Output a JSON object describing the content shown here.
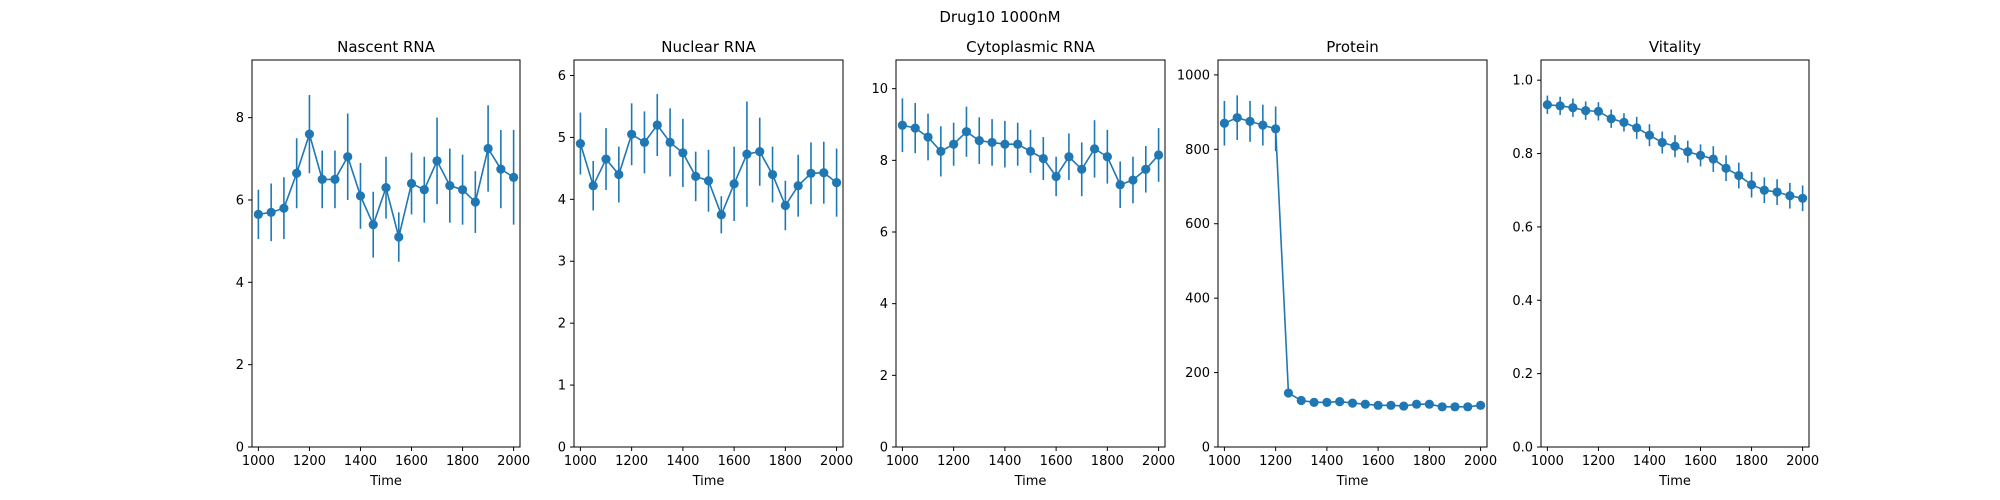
{
  "figure_title": "Drug10 1000nM",
  "colors": {
    "series": "#1f77b4",
    "axes": "#000000"
  },
  "chart_data": [
    {
      "type": "line",
      "title": "Nascent RNA",
      "xlabel": "Time",
      "ylabel": "",
      "xlim": [
        975,
        2025
      ],
      "ylim": [
        0,
        9.4
      ],
      "xticks": [
        1000,
        1200,
        1400,
        1600,
        1800,
        2000
      ],
      "yticks": [
        0,
        2,
        4,
        6,
        8
      ],
      "grid": false,
      "x": [
        1000,
        1050,
        1100,
        1150,
        1200,
        1250,
        1300,
        1350,
        1400,
        1450,
        1500,
        1550,
        1600,
        1650,
        1700,
        1750,
        1800,
        1850,
        1900,
        1950,
        2000
      ],
      "series": [
        {
          "values": [
            5.65,
            5.7,
            5.8,
            6.65,
            7.6,
            6.5,
            6.5,
            7.05,
            6.1,
            5.4,
            6.3,
            5.1,
            6.4,
            6.25,
            6.95,
            6.35,
            6.25,
            5.95,
            7.25,
            6.75,
            6.55
          ],
          "err": [
            0.6,
            0.7,
            0.75,
            0.85,
            0.95,
            0.7,
            0.7,
            1.05,
            0.8,
            0.8,
            0.75,
            0.6,
            0.75,
            0.8,
            1.05,
            0.9,
            0.85,
            0.75,
            1.05,
            0.95,
            1.15
          ]
        }
      ]
    },
    {
      "type": "line",
      "title": "Nuclear RNA",
      "xlabel": "Time",
      "ylabel": "",
      "xlim": [
        975,
        2025
      ],
      "ylim": [
        0,
        6.25
      ],
      "xticks": [
        1000,
        1200,
        1400,
        1600,
        1800,
        2000
      ],
      "yticks": [
        0,
        1,
        2,
        3,
        4,
        5,
        6
      ],
      "grid": false,
      "x": [
        1000,
        1050,
        1100,
        1150,
        1200,
        1250,
        1300,
        1350,
        1400,
        1450,
        1500,
        1550,
        1600,
        1650,
        1700,
        1750,
        1800,
        1850,
        1900,
        1950,
        2000
      ],
      "series": [
        {
          "values": [
            4.9,
            4.22,
            4.65,
            4.4,
            5.05,
            4.92,
            5.2,
            4.92,
            4.75,
            4.37,
            4.3,
            3.75,
            4.25,
            4.73,
            4.77,
            4.4,
            3.9,
            4.22,
            4.42,
            4.43,
            4.27
          ],
          "err": [
            0.5,
            0.4,
            0.5,
            0.45,
            0.5,
            0.5,
            0.5,
            0.55,
            0.55,
            0.4,
            0.5,
            0.3,
            0.6,
            0.85,
            0.55,
            0.45,
            0.4,
            0.5,
            0.5,
            0.5,
            0.55
          ]
        }
      ]
    },
    {
      "type": "line",
      "title": "Cytoplasmic RNA",
      "xlabel": "Time",
      "ylabel": "",
      "xlim": [
        975,
        2025
      ],
      "ylim": [
        0,
        10.8
      ],
      "xticks": [
        1000,
        1200,
        1400,
        1600,
        1800,
        2000
      ],
      "yticks": [
        0,
        2,
        4,
        6,
        8,
        10
      ],
      "grid": false,
      "x": [
        1000,
        1050,
        1100,
        1150,
        1200,
        1250,
        1300,
        1350,
        1400,
        1450,
        1500,
        1550,
        1600,
        1650,
        1700,
        1750,
        1800,
        1850,
        1900,
        1950,
        2000
      ],
      "series": [
        {
          "values": [
            8.98,
            8.9,
            8.65,
            8.25,
            8.45,
            8.8,
            8.55,
            8.5,
            8.45,
            8.45,
            8.25,
            8.05,
            7.55,
            8.1,
            7.75,
            8.32,
            8.1,
            7.32,
            7.45,
            7.75,
            8.15
          ],
          "err": [
            0.75,
            0.7,
            0.65,
            0.7,
            0.6,
            0.7,
            0.65,
            0.65,
            0.65,
            0.6,
            0.6,
            0.6,
            0.55,
            0.65,
            0.75,
            0.8,
            0.75,
            0.65,
            0.65,
            0.65,
            0.75
          ]
        }
      ]
    },
    {
      "type": "line",
      "title": "Protein",
      "xlabel": "Time",
      "ylabel": "",
      "xlim": [
        975,
        2025
      ],
      "ylim": [
        0,
        1040
      ],
      "xticks": [
        1000,
        1200,
        1400,
        1600,
        1800,
        2000
      ],
      "yticks": [
        0,
        200,
        400,
        600,
        800,
        1000
      ],
      "grid": false,
      "x": [
        1000,
        1050,
        1100,
        1150,
        1200,
        1250,
        1300,
        1350,
        1400,
        1450,
        1500,
        1550,
        1600,
        1650,
        1700,
        1750,
        1800,
        1850,
        1900,
        1950,
        2000
      ],
      "series": [
        {
          "values": [
            870,
            885,
            875,
            865,
            855,
            145,
            125,
            120,
            120,
            122,
            118,
            115,
            112,
            112,
            110,
            115,
            115,
            108,
            108,
            108,
            112
          ],
          "err": [
            60,
            60,
            55,
            55,
            60,
            10,
            8,
            8,
            8,
            8,
            8,
            8,
            8,
            8,
            8,
            8,
            8,
            8,
            8,
            8,
            8
          ]
        }
      ]
    },
    {
      "type": "line",
      "title": "Vitality",
      "xlabel": "Time",
      "ylabel": "",
      "xlim": [
        975,
        2025
      ],
      "ylim": [
        0,
        1.055
      ],
      "xticks": [
        1000,
        1200,
        1400,
        1600,
        1800,
        2000
      ],
      "yticks": [
        0.0,
        0.2,
        0.4,
        0.6,
        0.8,
        1.0
      ],
      "grid": false,
      "x": [
        1000,
        1050,
        1100,
        1150,
        1200,
        1250,
        1300,
        1350,
        1400,
        1450,
        1500,
        1550,
        1600,
        1650,
        1700,
        1750,
        1800,
        1850,
        1900,
        1950,
        2000
      ],
      "series": [
        {
          "values": [
            0.933,
            0.93,
            0.925,
            0.917,
            0.915,
            0.895,
            0.885,
            0.87,
            0.85,
            0.83,
            0.82,
            0.805,
            0.795,
            0.785,
            0.76,
            0.74,
            0.715,
            0.7,
            0.695,
            0.685,
            0.678
          ],
          "err": [
            0.025,
            0.025,
            0.025,
            0.025,
            0.025,
            0.025,
            0.025,
            0.03,
            0.03,
            0.03,
            0.03,
            0.03,
            0.03,
            0.035,
            0.035,
            0.035,
            0.035,
            0.035,
            0.035,
            0.035,
            0.035
          ]
        }
      ]
    }
  ]
}
